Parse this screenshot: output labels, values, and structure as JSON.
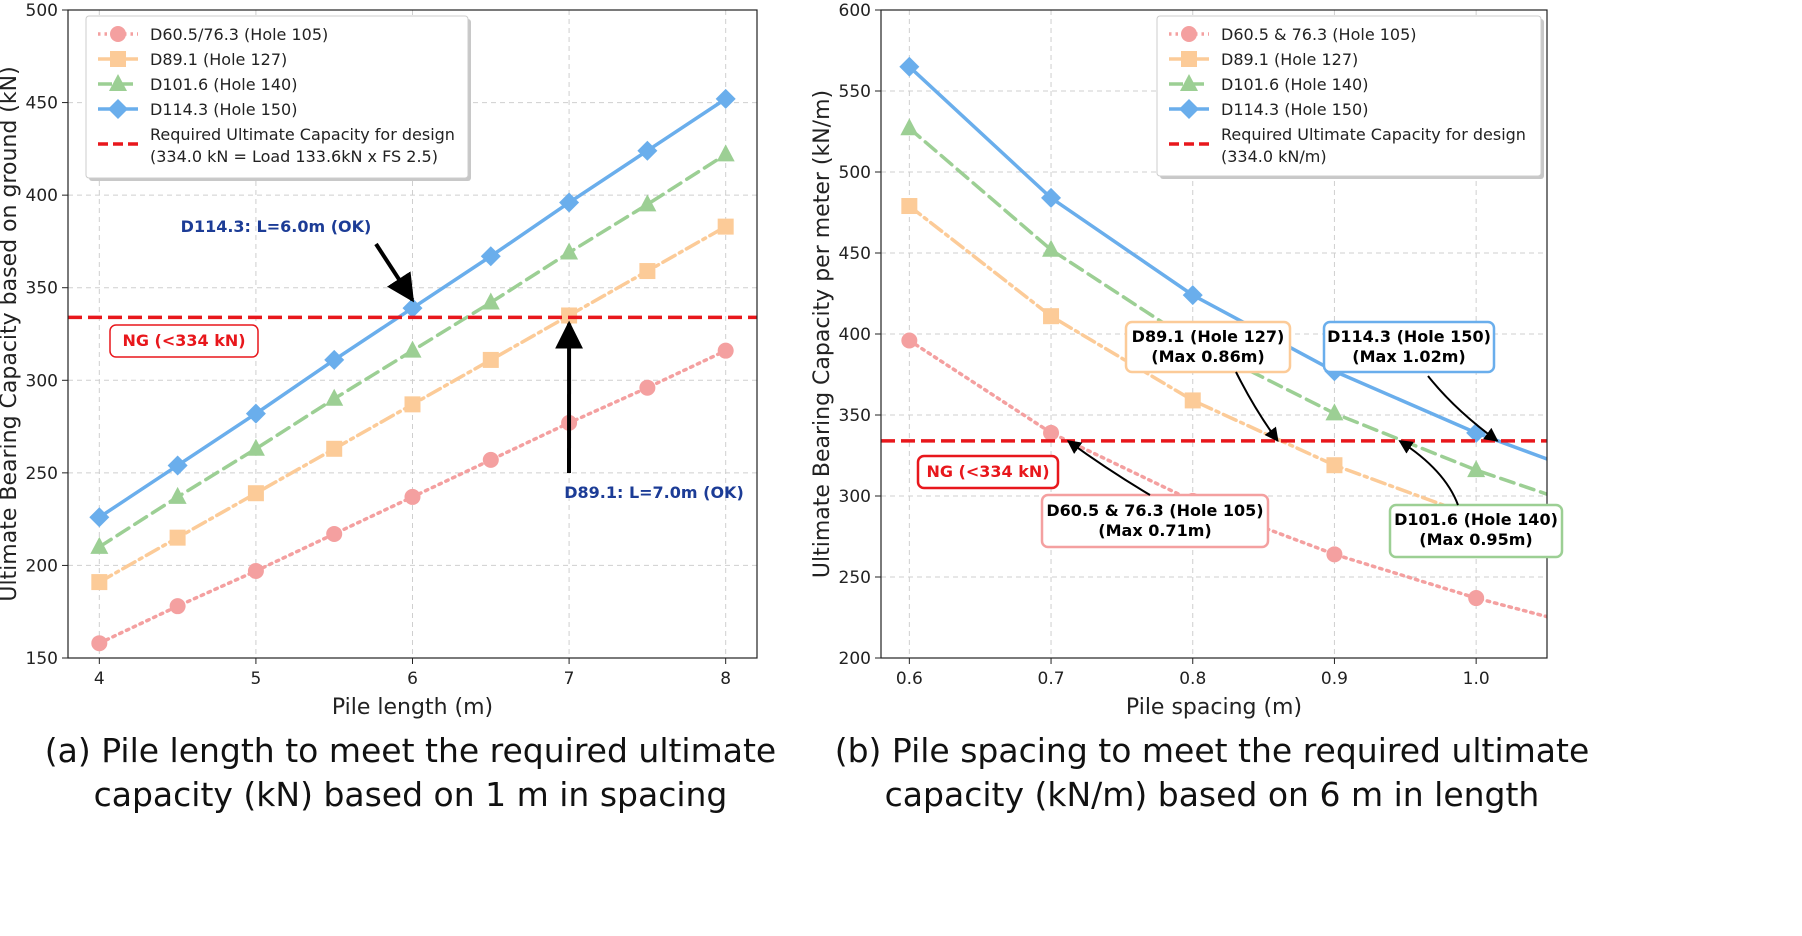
{
  "chart_data": [
    {
      "type": "line",
      "panel_caption_lines": [
        "(a) Pile length to meet the required ultimate",
        "capacity (kN) based on 1 m in spacing"
      ],
      "xlabel": "Pile length (m)",
      "ylabel": "Ultimate Bearing Capacity based on ground (kN)",
      "xlim": [
        3.8,
        8.2
      ],
      "ylim": [
        150,
        500
      ],
      "x_ticks": [
        "4",
        "5",
        "6",
        "7",
        "8"
      ],
      "y_ticks": [
        "150",
        "200",
        "250",
        "300",
        "350",
        "400",
        "450",
        "500"
      ],
      "grid": true,
      "legend_position": "top-left",
      "x": [
        4,
        4.5,
        5,
        5.5,
        6,
        6.5,
        7,
        7.5,
        8
      ],
      "series": [
        {
          "name": "D60.5/76.3 (Hole 105)",
          "color": "#f4a0a0",
          "marker": "circle",
          "line": "dotted",
          "values": [
            158,
            178,
            197,
            217,
            237,
            257,
            277,
            296,
            316
          ]
        },
        {
          "name": "D89.1 (Hole 127)",
          "color": "#fccb98",
          "marker": "square",
          "line": "dashdot",
          "values": [
            191,
            215,
            239,
            263,
            287,
            311,
            335,
            359,
            383
          ]
        },
        {
          "name": "D101.6 (Hole 140)",
          "color": "#9ccf94",
          "marker": "triangle",
          "line": "dashed",
          "values": [
            210,
            237,
            263,
            290,
            316,
            342,
            369,
            395,
            422
          ]
        },
        {
          "name": "D114.3 (Hole 150)",
          "color": "#6aaeec",
          "marker": "diamond",
          "line": "solid",
          "values": [
            226,
            254,
            282,
            311,
            339,
            367,
            396,
            424,
            452
          ]
        }
      ],
      "reference_line": {
        "y": 334,
        "color": "#e8171c",
        "label_lines": [
          "Required Ultimate Capacity for design",
          "(334.0 kN = Load 133.6kN x FS 2.5)"
        ]
      },
      "annotations": [
        {
          "text": "D114.3: L=6.0m (OK)",
          "color": "#1c3c96",
          "target": [
            6,
            339
          ]
        },
        {
          "text": "D89.1: L=7.0m (OK)",
          "color": "#1c3c96",
          "target": [
            7,
            335
          ]
        },
        {
          "text": "NG (<334 kN)",
          "color": "#e8171c",
          "boxed": true
        }
      ]
    },
    {
      "type": "line",
      "panel_caption_lines": [
        "(b) Pile spacing to meet the required ultimate",
        "capacity (kN/m) based on 6 m in length"
      ],
      "xlabel": "Pile spacing (m)",
      "ylabel": "Ultimate Bearing Capacity per meter (kN/m)",
      "xlim": [
        0.58,
        1.05
      ],
      "ylim": [
        200,
        600
      ],
      "x_ticks": [
        "0.6",
        "0.7",
        "0.8",
        "0.9",
        "1.0"
      ],
      "y_ticks": [
        "200",
        "250",
        "300",
        "350",
        "400",
        "450",
        "500",
        "550",
        "600"
      ],
      "grid": true,
      "legend_position": "top-right",
      "x": [
        0.6,
        0.7,
        0.8,
        0.9,
        1.0
      ],
      "curve_extends_to": 1.05,
      "series": [
        {
          "name": "D60.5 & 76.3 (Hole 105)",
          "color": "#f4a0a0",
          "marker": "circle",
          "line": "dotted",
          "values": [
            396,
            339,
            297,
            264,
            237
          ]
        },
        {
          "name": "D89.1 (Hole 127)",
          "color": "#fccb98",
          "marker": "square",
          "line": "dashdot",
          "values": [
            479,
            411,
            359,
            319,
            287
          ]
        },
        {
          "name": "D101.6 (Hole 140)",
          "color": "#9ccf94",
          "marker": "triangle",
          "line": "dashed",
          "values": [
            527,
            452,
            395,
            351,
            316
          ]
        },
        {
          "name": "D114.3 (Hole 150)",
          "color": "#6aaeec",
          "marker": "diamond",
          "line": "solid",
          "values": [
            565,
            484,
            424,
            377,
            339
          ]
        }
      ],
      "reference_line": {
        "y": 334,
        "color": "#e8171c",
        "label_lines": [
          "Required Ultimate Capacity for design",
          "(334.0 kN/m)"
        ]
      },
      "annotations": [
        {
          "lines": [
            "D89.1 (Hole 127)",
            "(Max 0.86m)"
          ],
          "border": "#fccb98",
          "target": [
            0.86,
            334
          ]
        },
        {
          "lines": [
            "D114.3 (Hole 150)",
            "(Max 1.02m)"
          ],
          "border": "#6aaeec",
          "target": [
            1.015,
            334
          ]
        },
        {
          "lines": [
            "D60.5 & 76.3 (Hole 105)",
            "(Max 0.71m)"
          ],
          "border": "#f4a0a0",
          "target": [
            0.712,
            334
          ]
        },
        {
          "lines": [
            "D101.6 (Hole 140)",
            "(Max 0.95m)"
          ],
          "border": "#9ccf94",
          "target": [
            0.946,
            334
          ]
        },
        {
          "lines": [
            "NG (<334 kN)"
          ],
          "border": "#e8171c",
          "color": "#e8171c"
        }
      ]
    }
  ]
}
